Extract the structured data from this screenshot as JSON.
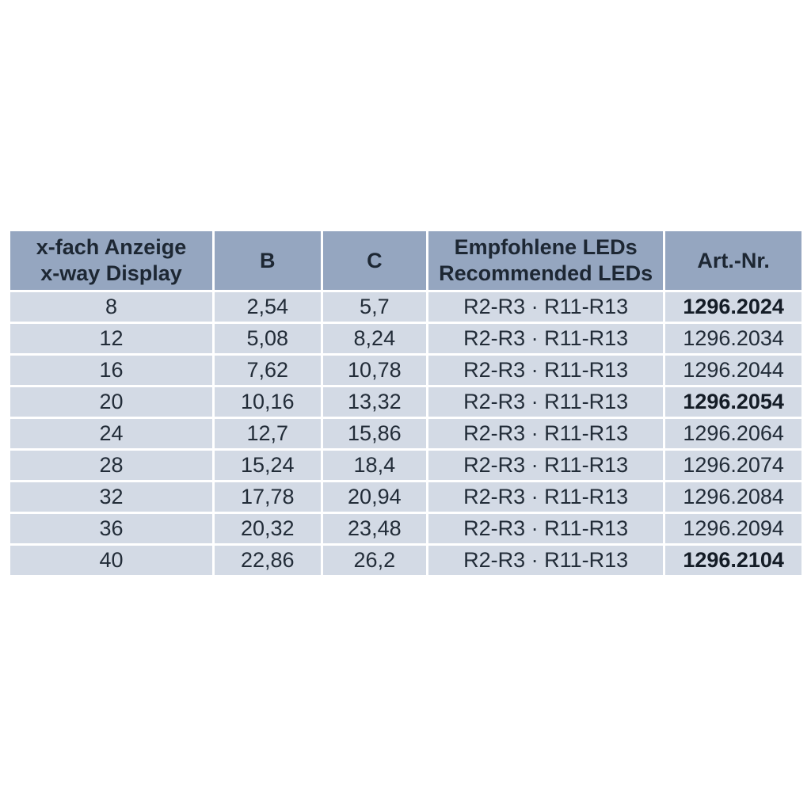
{
  "table": {
    "headers": [
      {
        "label": "x-fach Anzeige\nx-way Display"
      },
      {
        "label": "B"
      },
      {
        "label": "C"
      },
      {
        "label": "Empfohlene LEDs\nRecommended LEDs"
      },
      {
        "label": "Art.-Nr."
      }
    ],
    "rows": [
      {
        "display": "8",
        "b": "2,54",
        "c": "5,7",
        "leds": "R2-R3 · R11-R13",
        "art_nr": "1296.2024",
        "art_bold": true
      },
      {
        "display": "12",
        "b": "5,08",
        "c": "8,24",
        "leds": "R2-R3 · R11-R13",
        "art_nr": "1296.2034",
        "art_bold": false
      },
      {
        "display": "16",
        "b": "7,62",
        "c": "10,78",
        "leds": "R2-R3 · R11-R13",
        "art_nr": "1296.2044",
        "art_bold": false
      },
      {
        "display": "20",
        "b": "10,16",
        "c": "13,32",
        "leds": "R2-R3 · R11-R13",
        "art_nr": "1296.2054",
        "art_bold": true
      },
      {
        "display": "24",
        "b": "12,7",
        "c": "15,86",
        "leds": "R2-R3 · R11-R13",
        "art_nr": "1296.2064",
        "art_bold": false
      },
      {
        "display": "28",
        "b": "15,24",
        "c": "18,4",
        "leds": "R2-R3 · R11-R13",
        "art_nr": "1296.2074",
        "art_bold": false
      },
      {
        "display": "32",
        "b": "17,78",
        "c": "20,94",
        "leds": "R2-R3 · R11-R13",
        "art_nr": "1296.2084",
        "art_bold": false
      },
      {
        "display": "36",
        "b": "20,32",
        "c": "23,48",
        "leds": "R2-R3 · R11-R13",
        "art_nr": "1296.2094",
        "art_bold": false
      },
      {
        "display": "40",
        "b": "22,86",
        "c": "26,2",
        "leds": "R2-R3 · R11-R13",
        "art_nr": "1296.2104",
        "art_bold": true
      }
    ]
  },
  "colors": {
    "header_bg": "#95a6c0",
    "row_bg": "#d3dae5",
    "text": "#222c38",
    "gap": "#ffffff",
    "page_bg": "#ffffff"
  }
}
